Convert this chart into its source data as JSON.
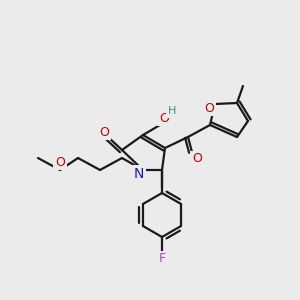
{
  "background_color": "#ebebeb",
  "bond_color": "#1a1a1a",
  "atom_colors": {
    "O": "#cc0000",
    "N": "#1a1acc",
    "F": "#bb44bb",
    "H": "#448888",
    "C": "#1a1a1a"
  },
  "figsize": [
    3.0,
    3.0
  ],
  "dpi": 100
}
